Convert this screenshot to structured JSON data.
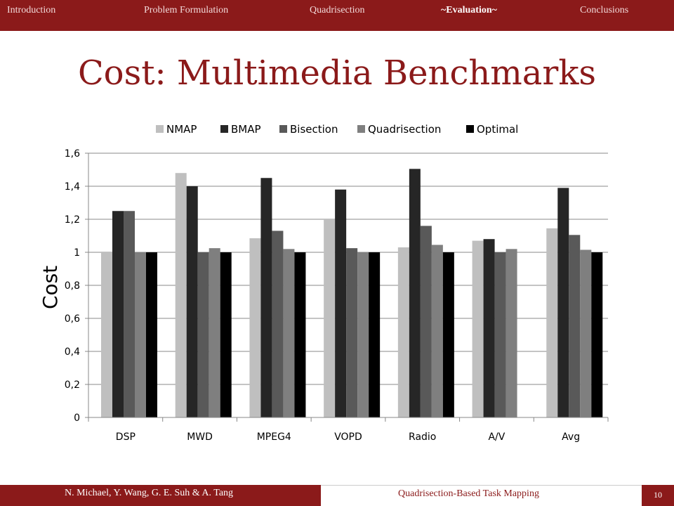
{
  "nav": {
    "items": [
      "Introduction",
      "Problem Formulation",
      "Quadrisection",
      "~Evaluation~",
      "Conclusions"
    ],
    "active": "~Evaluation~"
  },
  "slide": {
    "title": "Cost: Multimedia Benchmarks",
    "number": "10"
  },
  "footer": {
    "authors": "N. Michael, Y. Wang, G. E. Suh & A. Tang",
    "talk_title": "Quadrisection-Based Task Mapping"
  },
  "colors": {
    "brand": "#8b1a1a"
  },
  "chart_data": {
    "type": "bar",
    "title": "",
    "xlabel": "",
    "ylabel": "Cost",
    "ylim": [
      0,
      1.6
    ],
    "yticks": [
      "0",
      "0,2",
      "0,4",
      "0,6",
      "0,8",
      "1",
      "1,2",
      "1,4",
      "1,6"
    ],
    "grid": true,
    "legend_position": "top",
    "categories": [
      "DSP",
      "MWD",
      "MPEG4",
      "VOPD",
      "Radio",
      "A/V",
      "Avg"
    ],
    "series": [
      {
        "name": "NMAP",
        "color": "#bfbfbf",
        "values": [
          1.0,
          1.48,
          1.085,
          1.2,
          1.03,
          1.07,
          1.145
        ]
      },
      {
        "name": "BMAP",
        "color": "#262626",
        "values": [
          1.25,
          1.4,
          1.45,
          1.38,
          1.505,
          1.08,
          1.39
        ]
      },
      {
        "name": "Bisection",
        "color": "#595959",
        "values": [
          1.25,
          1.0,
          1.13,
          1.025,
          1.16,
          1.0,
          1.105
        ]
      },
      {
        "name": "Quadrisection",
        "color": "#7f7f7f",
        "values": [
          1.0,
          1.025,
          1.02,
          1.0,
          1.045,
          1.02,
          1.015
        ]
      },
      {
        "name": "Optimal",
        "color": "#000000",
        "values": [
          1.0,
          1.0,
          1.0,
          1.0,
          1.0,
          null,
          1.0
        ]
      }
    ]
  }
}
